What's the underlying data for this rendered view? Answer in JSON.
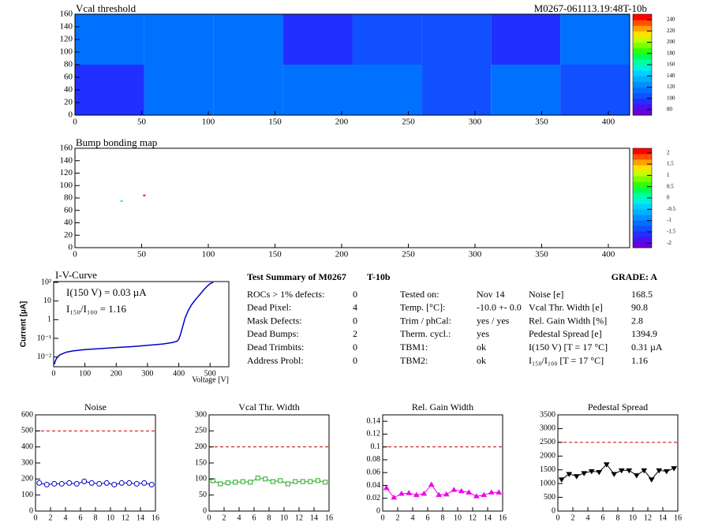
{
  "chart_data": [
    {
      "type": "heatmap",
      "title": "Vcal threshold",
      "label": "M0267-061113.19:48T-10b",
      "xlim": [
        0,
        416
      ],
      "ylim": [
        0,
        160
      ],
      "xticks": [
        0,
        50,
        100,
        150,
        200,
        250,
        300,
        350,
        400
      ],
      "yticks": [
        0,
        20,
        40,
        60,
        80,
        100,
        120,
        140,
        160
      ],
      "zlim": [
        70,
        250
      ],
      "zticks": [
        80,
        100,
        120,
        140,
        160,
        180,
        200,
        220,
        240
      ],
      "colors": [
        "#6a00d0",
        "#4a10f0",
        "#2030ff",
        "#1050ff",
        "#0070ff",
        "#0090ff",
        "#00b0ff",
        "#00d0ff",
        "#00f0e0",
        "#00ffa0",
        "#00ff50",
        "#30ff00",
        "#80ff00",
        "#c0ff00",
        "#ffe000",
        "#ffa000",
        "#ff5000",
        "#ff0000"
      ],
      "values": [
        [
          90,
          115,
          110,
          110,
          110,
          105,
          110,
          105
        ],
        [
          110,
          110,
          110,
          90,
          105,
          105,
          95,
          110
        ]
      ]
    },
    {
      "type": "scatter",
      "title": "Bump bonding map",
      "xlim": [
        0,
        416
      ],
      "ylim": [
        0,
        160
      ],
      "xticks": [
        0,
        50,
        100,
        150,
        200,
        250,
        300,
        350,
        400
      ],
      "yticks": [
        0,
        20,
        40,
        60,
        80,
        100,
        120,
        140,
        160
      ],
      "zlim": [
        -2.2,
        2.2
      ],
      "zticks": [
        2,
        1.5,
        1,
        0.5,
        0,
        -0.5,
        -1,
        -1.5,
        -2
      ],
      "colors": [
        "#6a00d0",
        "#4a10f0",
        "#2030ff",
        "#1050ff",
        "#0070ff",
        "#0090ff",
        "#00b0ff",
        "#00d0ff",
        "#00f0e0",
        "#00ffa0",
        "#00ff50",
        "#30ff00",
        "#80ff00",
        "#c0ff00",
        "#ffe000",
        "#ffa000",
        "#ff5000",
        "#ff0000"
      ],
      "x": [
        35,
        52
      ],
      "y": [
        75,
        84
      ],
      "z": [
        0,
        2
      ]
    },
    {
      "type": "log-line",
      "title": "I-V-Curve",
      "annotations": [
        "I(150 V) = 0.03 µA",
        "I₁₅₀/I₁₀₀ =  1.16"
      ],
      "xlabel": "Voltage [V]",
      "ylabel": "Current [µA]",
      "log_y": true,
      "color": "#0000cc",
      "xlim": [
        0,
        560
      ],
      "ylim": [
        0.003,
        110
      ],
      "xticks": [
        0,
        100,
        200,
        300,
        400,
        500
      ],
      "yticks": [
        {
          "value": 0.01,
          "label": "10⁻²"
        },
        {
          "value": 0.1,
          "label": "10⁻¹"
        },
        1,
        10,
        {
          "value": 100,
          "label": "10²"
        }
      ],
      "x": [
        2,
        5,
        10,
        20,
        40,
        60,
        100,
        150,
        200,
        250,
        300,
        350,
        380,
        395,
        400,
        405,
        410,
        415,
        420,
        430,
        440,
        450,
        460,
        470,
        480,
        490,
        500,
        510
      ],
      "values": [
        0.004,
        0.006,
        0.009,
        0.013,
        0.018,
        0.021,
        0.025,
        0.028,
        0.032,
        0.036,
        0.042,
        0.05,
        0.06,
        0.07,
        0.09,
        0.15,
        0.3,
        0.6,
        1.2,
        3,
        6,
        10,
        16,
        25,
        40,
        60,
        85,
        100
      ]
    },
    {
      "type": "line",
      "title": "Noise",
      "marker": "circle",
      "color": "#0000cc",
      "threshold": 500,
      "xlim": [
        0,
        16
      ],
      "ylim": [
        0,
        600
      ],
      "xticks": [
        0,
        2,
        4,
        6,
        8,
        10,
        12,
        14,
        16
      ],
      "yticks": [
        0,
        100,
        200,
        300,
        400,
        500,
        600
      ],
      "x": [
        0.5,
        1.5,
        2.5,
        3.5,
        4.5,
        5.5,
        6.5,
        7.5,
        8.5,
        9.5,
        10.5,
        11.5,
        12.5,
        13.5,
        14.5,
        15.5
      ],
      "values": [
        175,
        165,
        170,
        170,
        175,
        170,
        185,
        175,
        170,
        175,
        165,
        175,
        175,
        170,
        175,
        165
      ],
      "errors": [
        15,
        15,
        15,
        15,
        15,
        15,
        15,
        15,
        15,
        15,
        15,
        15,
        15,
        15,
        15,
        15
      ]
    },
    {
      "type": "line",
      "title": "Vcal Thr. Width",
      "marker": "square",
      "color": "#22aa22",
      "threshold": 200,
      "xlim": [
        0,
        16
      ],
      "ylim": [
        0,
        300
      ],
      "xticks": [
        0,
        2,
        4,
        6,
        8,
        10,
        12,
        14,
        16
      ],
      "yticks": [
        0,
        50,
        100,
        150,
        200,
        250,
        300
      ],
      "x": [
        0.5,
        1.5,
        2.5,
        3.5,
        4.5,
        5.5,
        6.5,
        7.5,
        8.5,
        9.5,
        10.5,
        11.5,
        12.5,
        13.5,
        14.5,
        15.5
      ],
      "values": [
        95,
        85,
        88,
        90,
        92,
        90,
        103,
        100,
        92,
        95,
        85,
        92,
        92,
        92,
        95,
        90
      ]
    },
    {
      "type": "line",
      "title": "Rel. Gain Width",
      "marker": "triangle",
      "color": "#ee00ee",
      "threshold": 0.1,
      "xlim": [
        0,
        16
      ],
      "ylim": [
        0,
        0.15
      ],
      "xticks": [
        0,
        2,
        4,
        6,
        8,
        10,
        12,
        14,
        16
      ],
      "yticks": [
        0,
        0.02,
        0.04,
        0.06,
        0.08,
        0.1,
        0.12,
        0.14
      ],
      "x": [
        0.5,
        1.5,
        2.5,
        3.5,
        4.5,
        5.5,
        6.5,
        7.5,
        8.5,
        9.5,
        10.5,
        11.5,
        12.5,
        13.5,
        14.5,
        15.5
      ],
      "values": [
        0.036,
        0.021,
        0.027,
        0.028,
        0.025,
        0.027,
        0.041,
        0.025,
        0.026,
        0.033,
        0.031,
        0.029,
        0.023,
        0.025,
        0.029,
        0.029
      ]
    },
    {
      "type": "line",
      "title": "Pedestal Spread",
      "marker": "triangle-down",
      "color": "#000000",
      "threshold": 2500,
      "xlim": [
        0,
        16
      ],
      "ylim": [
        0,
        3500
      ],
      "xticks": [
        0,
        2,
        4,
        6,
        8,
        10,
        12,
        14,
        16
      ],
      "yticks": [
        0,
        500,
        1000,
        1500,
        2000,
        2500,
        3000,
        3500
      ],
      "x": [
        0.5,
        1.5,
        2.5,
        3.5,
        4.5,
        5.5,
        6.5,
        7.5,
        8.5,
        9.5,
        10.5,
        11.5,
        12.5,
        13.5,
        14.5,
        15.5
      ],
      "values": [
        1150,
        1350,
        1270,
        1380,
        1450,
        1420,
        1700,
        1350,
        1480,
        1480,
        1300,
        1480,
        1150,
        1480,
        1450,
        1560
      ]
    }
  ],
  "summary": {
    "title": "Test Summary of M0267",
    "module": "T-10b",
    "grade": "GRADE:  A",
    "columns": [
      [
        [
          "ROCs > 1% defects:",
          "0"
        ],
        [
          "Dead Pixel:",
          "4"
        ],
        [
          "Mask Defects:",
          "0"
        ],
        [
          "Dead Bumps:",
          "2"
        ],
        [
          "Dead Trimbits:",
          "0"
        ],
        [
          "Address Probl:",
          "0"
        ]
      ],
      [
        [
          "Tested on:",
          "Nov 14"
        ],
        [
          "Temp. [°C]:",
          "-10.0 +- 0.0"
        ],
        [
          "Trim / phCal:",
          "yes / yes"
        ],
        [
          "Therm. cycl.:",
          "yes"
        ],
        [
          "TBM1:",
          "ok"
        ],
        [
          "TBM2:",
          "ok"
        ]
      ],
      [
        [
          "Noise [e]",
          "168.5"
        ],
        [
          "Vcal Thr. Width [e]",
          "90.8"
        ],
        [
          "Rel. Gain Width [%]",
          "2.8"
        ],
        [
          "Pedestal Spread [e]",
          "1394.9"
        ],
        [
          "I(150 V) [T = 17 °C]",
          "0.31 µA"
        ],
        [
          "I₁₅₀/I₁₀₀  [T = 17 °C]",
          "1.16"
        ]
      ]
    ]
  }
}
